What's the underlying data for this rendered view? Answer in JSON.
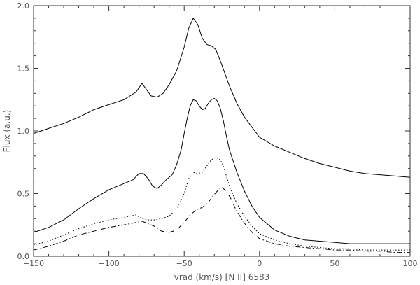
{
  "chart_data": {
    "type": "line",
    "title": "",
    "xlabel": "vrad (km/s)   [N II] 6583",
    "ylabel": "Flux (a.u.)",
    "xlim": [
      -150,
      100
    ],
    "ylim": [
      0.0,
      2.0
    ],
    "grid": false,
    "legend": "none",
    "xticks": [
      -150,
      -100,
      -50,
      0,
      50,
      100
    ],
    "xtick_labels": [
      "−150",
      "−100",
      "−50",
      "0",
      "50",
      "100"
    ],
    "yticks": [
      0.0,
      0.5,
      1.0,
      1.5,
      2.0
    ],
    "ytick_labels": [
      "0.0",
      "0.5",
      "1.0",
      "1.5",
      "2.0"
    ],
    "series": [
      {
        "style": "solid",
        "x": [
          -150,
          -140,
          -130,
          -120,
          -110,
          -100,
          -90,
          -82,
          -78,
          -75,
          -72,
          -68,
          -64,
          -60,
          -55,
          -50,
          -47,
          -44,
          -41,
          -38,
          -35,
          -32,
          -29,
          -26,
          -23,
          -20,
          -15,
          -10,
          -5,
          0,
          10,
          20,
          30,
          40,
          50,
          60,
          70,
          80,
          90,
          100
        ],
        "y": [
          0.98,
          1.02,
          1.06,
          1.11,
          1.17,
          1.21,
          1.25,
          1.31,
          1.38,
          1.33,
          1.28,
          1.27,
          1.3,
          1.37,
          1.48,
          1.67,
          1.82,
          1.9,
          1.85,
          1.74,
          1.69,
          1.68,
          1.65,
          1.56,
          1.46,
          1.36,
          1.22,
          1.11,
          1.03,
          0.95,
          0.88,
          0.83,
          0.78,
          0.74,
          0.71,
          0.68,
          0.66,
          0.65,
          0.64,
          0.63
        ]
      },
      {
        "style": "solid",
        "x": [
          -150,
          -140,
          -130,
          -120,
          -110,
          -100,
          -90,
          -84,
          -80,
          -77,
          -74,
          -71,
          -68,
          -65,
          -62,
          -58,
          -55,
          -52,
          -50,
          -48,
          -46,
          -44,
          -42,
          -40,
          -38,
          -36,
          -34,
          -32,
          -30,
          -28,
          -26,
          -24,
          -22,
          -20,
          -15,
          -10,
          -5,
          0,
          10,
          20,
          30,
          40,
          50,
          60,
          70,
          80,
          90,
          100
        ],
        "y": [
          0.19,
          0.23,
          0.29,
          0.38,
          0.46,
          0.53,
          0.58,
          0.61,
          0.66,
          0.66,
          0.62,
          0.56,
          0.54,
          0.57,
          0.61,
          0.65,
          0.73,
          0.85,
          0.98,
          1.1,
          1.2,
          1.25,
          1.24,
          1.2,
          1.17,
          1.18,
          1.22,
          1.25,
          1.26,
          1.24,
          1.18,
          1.08,
          0.96,
          0.85,
          0.67,
          0.52,
          0.4,
          0.31,
          0.21,
          0.16,
          0.13,
          0.12,
          0.11,
          0.1,
          0.1,
          0.1,
          0.1,
          0.1
        ]
      },
      {
        "style": "dotted",
        "x": [
          -150,
          -140,
          -130,
          -120,
          -110,
          -100,
          -90,
          -82,
          -78,
          -74,
          -70,
          -65,
          -60,
          -55,
          -50,
          -47,
          -44,
          -41,
          -38,
          -35,
          -32,
          -29,
          -26,
          -24,
          -22,
          -20,
          -15,
          -10,
          -5,
          0,
          10,
          20,
          30,
          40,
          50,
          60,
          70,
          80,
          90,
          100
        ],
        "y": [
          0.09,
          0.12,
          0.17,
          0.22,
          0.26,
          0.29,
          0.31,
          0.33,
          0.3,
          0.29,
          0.29,
          0.3,
          0.32,
          0.38,
          0.5,
          0.62,
          0.67,
          0.66,
          0.67,
          0.72,
          0.77,
          0.79,
          0.77,
          0.72,
          0.64,
          0.56,
          0.42,
          0.32,
          0.24,
          0.18,
          0.13,
          0.1,
          0.08,
          0.07,
          0.06,
          0.06,
          0.05,
          0.05,
          0.05,
          0.05
        ]
      },
      {
        "style": "dash-dot",
        "x": [
          -150,
          -140,
          -130,
          -120,
          -110,
          -100,
          -90,
          -82,
          -78,
          -74,
          -70,
          -65,
          -60,
          -55,
          -50,
          -46,
          -42,
          -38,
          -34,
          -31,
          -28,
          -25,
          -22,
          -19,
          -16,
          -12,
          -8,
          -4,
          0,
          10,
          20,
          30,
          40,
          50,
          60,
          70,
          80,
          90,
          100
        ],
        "y": [
          0.05,
          0.08,
          0.12,
          0.17,
          0.2,
          0.23,
          0.25,
          0.27,
          0.28,
          0.26,
          0.24,
          0.2,
          0.19,
          0.21,
          0.27,
          0.33,
          0.37,
          0.39,
          0.43,
          0.48,
          0.52,
          0.55,
          0.52,
          0.46,
          0.38,
          0.3,
          0.23,
          0.18,
          0.14,
          0.1,
          0.08,
          0.07,
          0.06,
          0.05,
          0.05,
          0.04,
          0.04,
          0.03,
          0.03
        ]
      }
    ]
  }
}
